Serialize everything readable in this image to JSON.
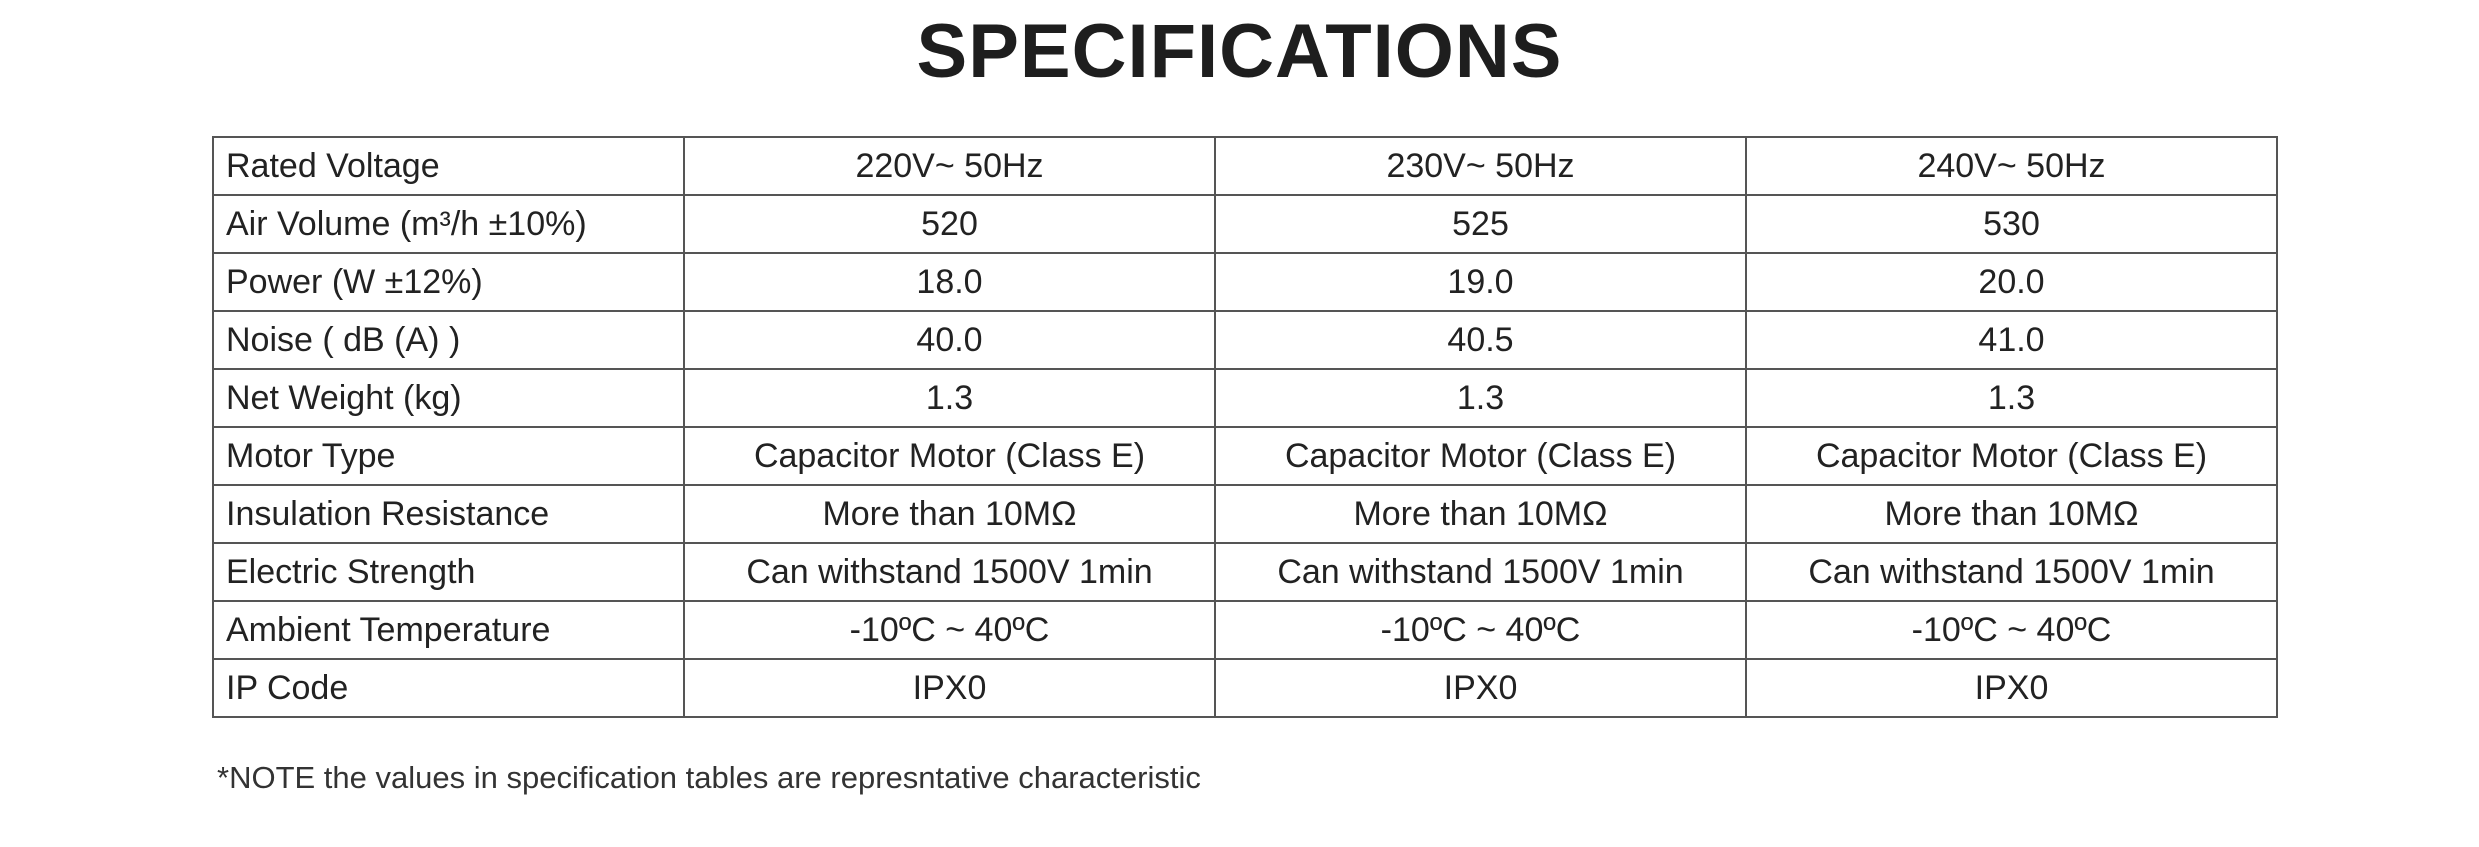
{
  "title": "SPECIFICATIONS",
  "table": {
    "rows": [
      [
        "Rated Voltage",
        "220V~  50Hz",
        "230V~  50Hz",
        "240V~  50Hz"
      ],
      [
        "Air Volume (m³/h ±10%)",
        "520",
        "525",
        "530"
      ],
      [
        "Power (W ±12%)",
        "18.0",
        "19.0",
        "20.0"
      ],
      [
        "Noise ( dB (A)    )",
        "40.0",
        "40.5",
        "41.0"
      ],
      [
        "Net Weight (kg)",
        "1.3",
        "1.3",
        "1.3"
      ],
      [
        "Motor Type",
        "Capacitor Motor (Class E)",
        "Capacitor Motor (Class E)",
        "Capacitor Motor (Class E)"
      ],
      [
        "Insulation Resistance",
        "More than 10MΩ",
        "More than 10MΩ",
        "More than 10MΩ"
      ],
      [
        "Electric Strength",
        "Can withstand 1500V 1min",
        "Can withstand 1500V 1min",
        "Can withstand 1500V 1min"
      ],
      [
        "Ambient Temperature",
        "-10ºC ~ 40ºC",
        "-10ºC ~ 40ºC",
        "-10ºC ~ 40ºC"
      ],
      [
        "IP Code",
        "IPX0",
        "IPX0",
        "IPX0"
      ]
    ]
  },
  "note": "*NOTE the values in specification tables are represntative characteristic"
}
